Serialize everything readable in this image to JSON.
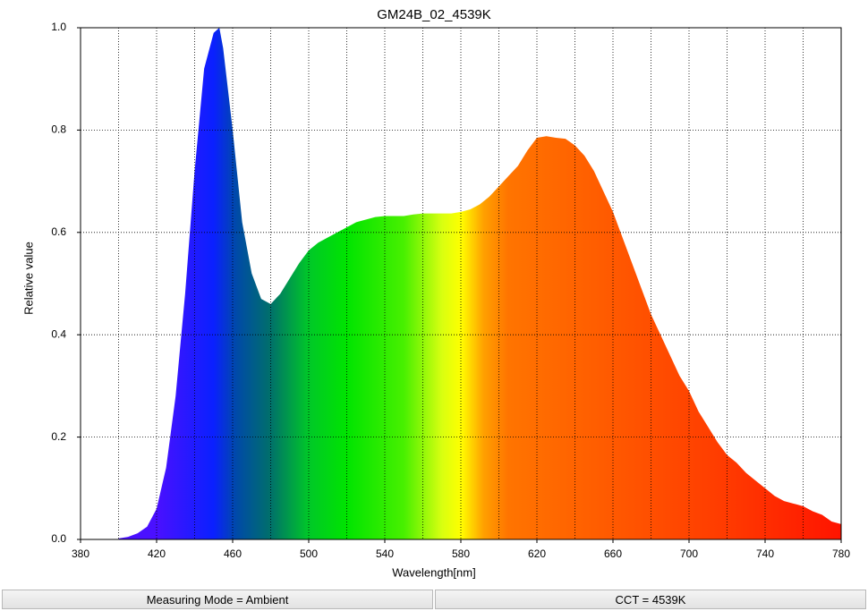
{
  "chart_data": {
    "type": "area",
    "title": "GM24B_02_4539K",
    "x_label": "Wavelength[nm]",
    "y_label": "Relative value",
    "x": [
      400,
      405,
      410,
      415,
      420,
      425,
      430,
      435,
      440,
      445,
      450,
      453,
      455,
      460,
      465,
      470,
      475,
      480,
      485,
      490,
      495,
      500,
      505,
      510,
      515,
      520,
      525,
      530,
      535,
      540,
      545,
      550,
      555,
      560,
      565,
      570,
      575,
      580,
      585,
      590,
      595,
      600,
      605,
      610,
      615,
      620,
      625,
      630,
      635,
      640,
      645,
      650,
      655,
      660,
      665,
      670,
      675,
      680,
      685,
      690,
      695,
      700,
      705,
      710,
      715,
      720,
      725,
      730,
      735,
      740,
      745,
      750,
      755,
      760,
      765,
      770,
      775,
      780
    ],
    "values": [
      0.002,
      0.005,
      0.012,
      0.025,
      0.06,
      0.14,
      0.28,
      0.48,
      0.72,
      0.92,
      0.99,
      1.0,
      0.96,
      0.8,
      0.62,
      0.52,
      0.47,
      0.46,
      0.48,
      0.51,
      0.54,
      0.565,
      0.58,
      0.59,
      0.6,
      0.61,
      0.62,
      0.625,
      0.63,
      0.632,
      0.632,
      0.632,
      0.635,
      0.637,
      0.637,
      0.637,
      0.637,
      0.64,
      0.645,
      0.655,
      0.67,
      0.69,
      0.71,
      0.73,
      0.76,
      0.785,
      0.788,
      0.785,
      0.783,
      0.77,
      0.75,
      0.72,
      0.68,
      0.64,
      0.59,
      0.54,
      0.49,
      0.44,
      0.4,
      0.36,
      0.32,
      0.29,
      0.25,
      0.22,
      0.19,
      0.165,
      0.15,
      0.13,
      0.115,
      0.1,
      0.085,
      0.075,
      0.07,
      0.065,
      0.055,
      0.048,
      0.035,
      0.03
    ],
    "gradient": [
      [
        420,
        "#4a10ff"
      ],
      [
        450,
        "#0a20ff"
      ],
      [
        462,
        "#004aa8"
      ],
      [
        480,
        "#00706a"
      ],
      [
        500,
        "#00c828"
      ],
      [
        520,
        "#00e400"
      ],
      [
        550,
        "#48f000"
      ],
      [
        570,
        "#d8ff10"
      ],
      [
        580,
        "#ffff00"
      ],
      [
        592,
        "#ffa000"
      ],
      [
        605,
        "#ff7400"
      ],
      [
        650,
        "#ff5e00"
      ],
      [
        720,
        "#ff3a00"
      ],
      [
        780,
        "#ff1400"
      ]
    ],
    "xlim": [
      380,
      780
    ],
    "xticks": [
      380,
      420,
      460,
      500,
      540,
      580,
      620,
      660,
      700,
      740,
      780
    ],
    "xgrid": [
      400,
      420,
      440,
      460,
      480,
      500,
      520,
      540,
      560,
      580,
      600,
      620,
      640,
      660,
      680,
      700,
      720,
      740,
      760
    ],
    "ylim": [
      0,
      1
    ],
    "yticks": [
      {
        "value": 0,
        "label": "0.0"
      },
      0.2,
      0.4,
      0.6,
      0.8,
      {
        "value": 1,
        "label": "1.0"
      }
    ],
    "ygrid": [
      0.2,
      0.4,
      0.6,
      0.8
    ]
  },
  "status_bar": [
    "Measuring Mode = Ambient",
    "CCT = 4539K"
  ]
}
